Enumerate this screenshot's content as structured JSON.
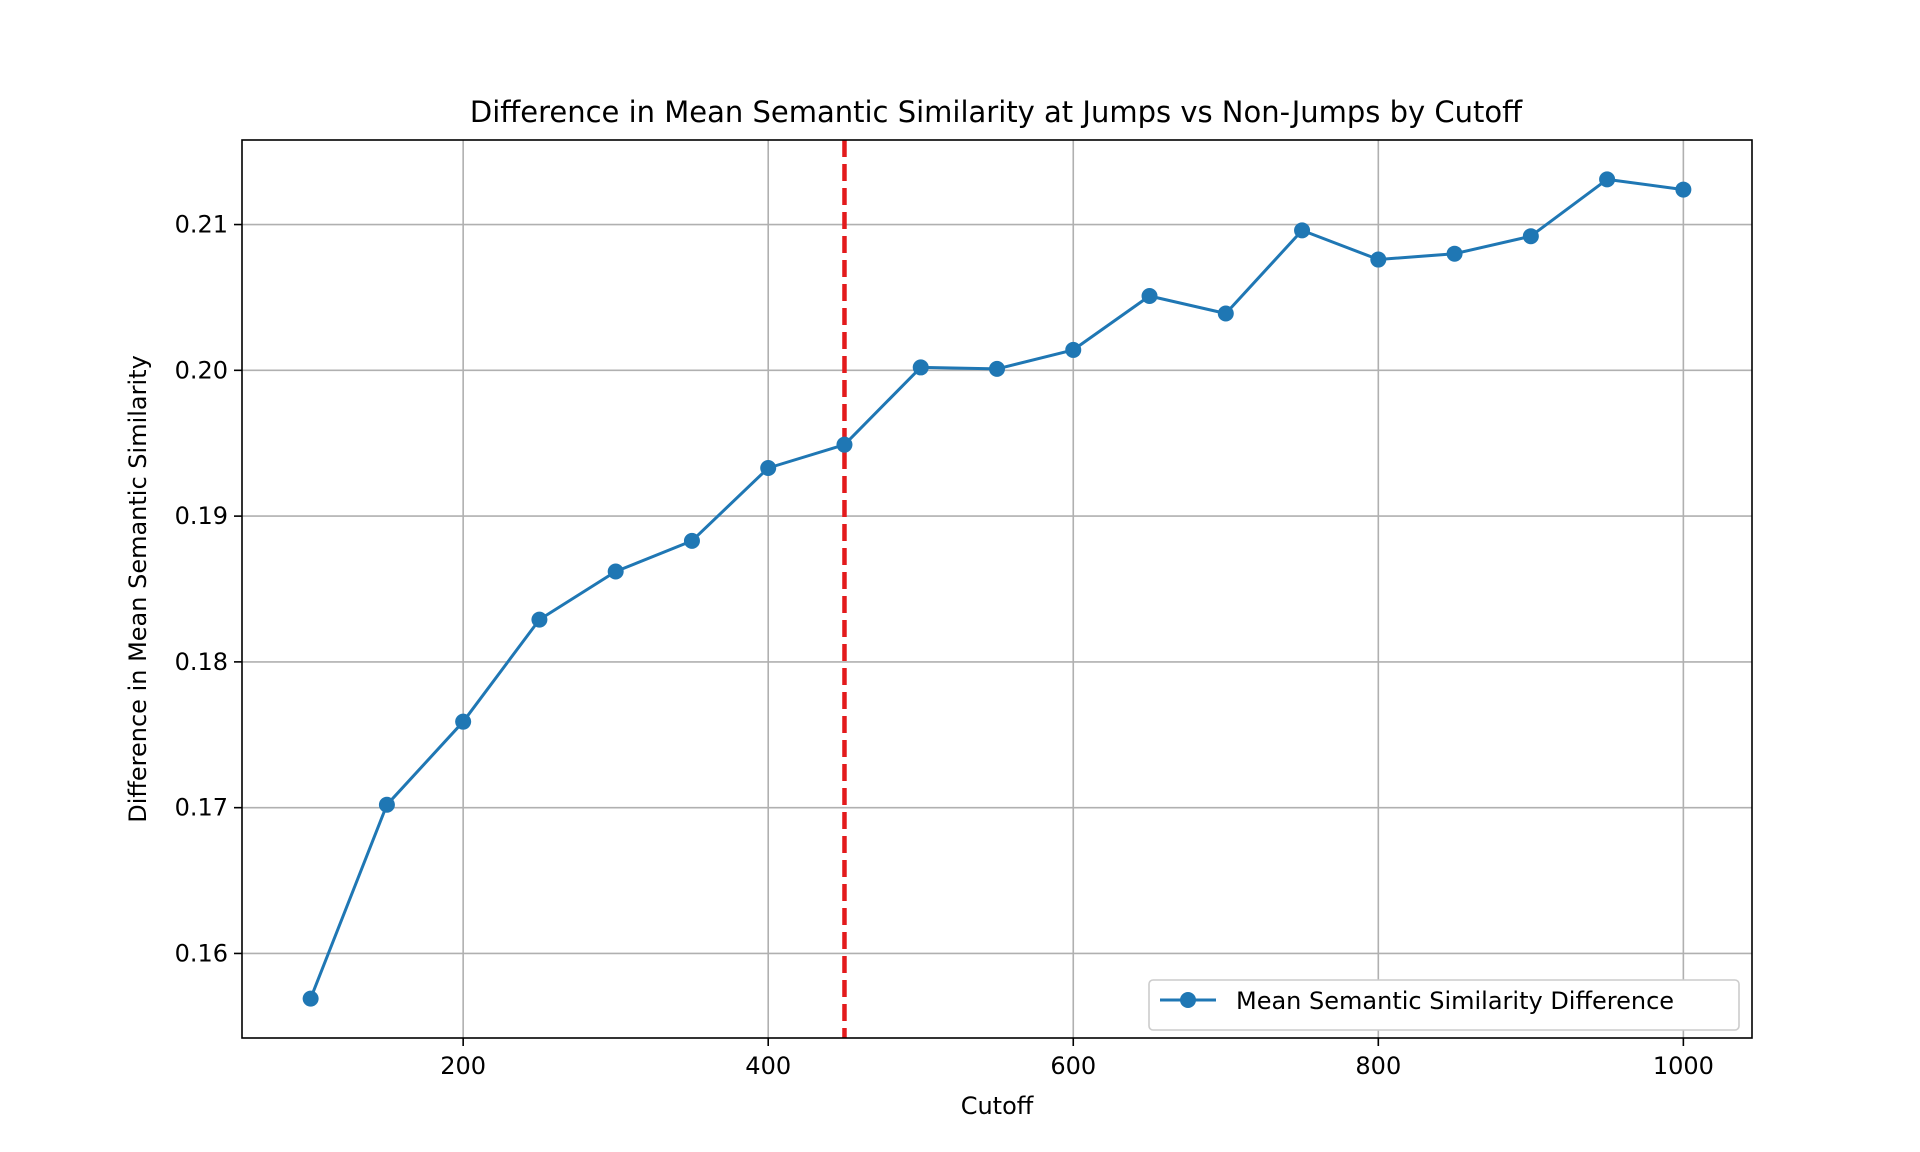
{
  "chart_data": {
    "type": "line",
    "title": "Difference in Mean Semantic Similarity at Jumps vs Non-Jumps by Cutoff",
    "xlabel": "Cutoff",
    "ylabel": "Difference in Mean Semantic Similarity",
    "xlim": [
      55,
      1045
    ],
    "ylim": [
      0.1542,
      0.2158
    ],
    "xticks": [
      200,
      400,
      600,
      800,
      1000
    ],
    "yticks": [
      0.16,
      0.17,
      0.18,
      0.19,
      0.2,
      0.21
    ],
    "xtick_labels": [
      "200",
      "400",
      "600",
      "800",
      "1000"
    ],
    "ytick_labels": [
      "0.16",
      "0.17",
      "0.18",
      "0.19",
      "0.20",
      "0.21"
    ],
    "grid": true,
    "legend_position": "lower-right",
    "series": [
      {
        "name": "Mean Semantic Similarity Difference",
        "color": "#1f77b4",
        "marker": "circle",
        "x": [
          100,
          150,
          200,
          250,
          300,
          350,
          400,
          450,
          500,
          550,
          600,
          650,
          700,
          750,
          800,
          850,
          900,
          950,
          1000
        ],
        "y": [
          0.1569,
          0.1702,
          0.1759,
          0.1829,
          0.1862,
          0.1883,
          0.1933,
          0.1949,
          0.2002,
          0.2001,
          0.2014,
          0.2051,
          0.2039,
          0.2096,
          0.2076,
          0.208,
          0.2092,
          0.2131,
          0.2124
        ]
      }
    ],
    "reference_line": {
      "orientation": "vertical",
      "x": 450,
      "color": "#e31a1c",
      "style": "dashed"
    }
  }
}
